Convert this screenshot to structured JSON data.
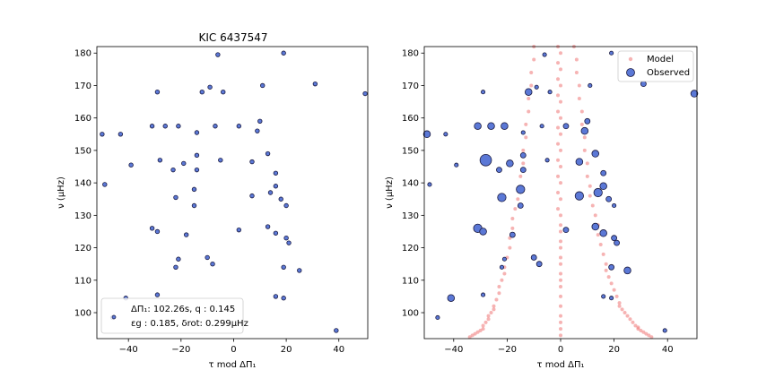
{
  "chart_data": [
    {
      "type": "scatter",
      "title": "KIC 6437547",
      "xlabel": "τ mod ΔΠ₁",
      "ylabel": "ν (μHz)",
      "xlim": [
        -52,
        51
      ],
      "ylim": [
        92,
        182
      ],
      "xticks": [
        -40,
        -20,
        0,
        20,
        40
      ],
      "yticks": [
        100,
        110,
        120,
        130,
        140,
        150,
        160,
        170,
        180
      ],
      "annotation": {
        "line1": "ΔΠ₁: 102.26s, q :  0.145",
        "line2": "εg : 0.185, δrot: 0.299μHz"
      },
      "series": [
        {
          "marker_color": "#5b78d6",
          "edge_color": "#1a1a40",
          "x": [
            -6,
            19,
            31,
            50,
            -29,
            11,
            -9,
            -12,
            -4,
            10,
            -31,
            -26,
            -21,
            -7,
            2,
            9,
            -14,
            -50,
            -43,
            -39,
            -28,
            -19,
            -14,
            7,
            13,
            16,
            -5,
            -14,
            -23,
            -49,
            -15,
            -22,
            -15,
            7,
            14,
            16,
            18,
            20,
            13,
            -31,
            -29,
            -18,
            2,
            16,
            20,
            21,
            -21,
            -10,
            -8,
            19,
            25,
            -22,
            -29,
            16,
            19,
            -41,
            -46,
            39
          ],
          "y": [
            179.5,
            180,
            170.5,
            167.5,
            168,
            170,
            169.5,
            168,
            168,
            159,
            157.5,
            157.5,
            157.5,
            157.5,
            157.5,
            156,
            155.5,
            155,
            155,
            145.5,
            147,
            146,
            148.5,
            146.5,
            149,
            143,
            147,
            144,
            144,
            139.5,
            138,
            135.5,
            133,
            136,
            137,
            139,
            135,
            133,
            126.5,
            126,
            125,
            124,
            125.5,
            124.5,
            123,
            121.5,
            116.5,
            117,
            115,
            114,
            113,
            114,
            105.5,
            105,
            104.5,
            104.5,
            98.5,
            94.5
          ]
        }
      ]
    },
    {
      "type": "scatter",
      "title": "",
      "xlabel": "τ mod ΔΠ₁",
      "ylabel": "ν (μHz)",
      "xlim": [
        -51,
        51
      ],
      "ylim": [
        92,
        182
      ],
      "xticks": [
        -40,
        -20,
        0,
        20,
        40
      ],
      "yticks": [
        100,
        110,
        120,
        130,
        140,
        150,
        160,
        170,
        180
      ],
      "legend": {
        "placement": "top-right",
        "entries": [
          "Model",
          "Observed"
        ]
      },
      "series": [
        {
          "name": "Model",
          "color": "#f08080",
          "branches": [
            {
              "x": [
                -10,
                -10,
                -11,
                -11,
                -12,
                -12,
                -13,
                -13,
                -14,
                -14,
                -15,
                -15,
                -16,
                -17,
                -18,
                -18,
                -19,
                -19,
                -20,
                -21,
                -21,
                -22,
                -23,
                -23,
                -24,
                -25,
                -25,
                -26,
                -27,
                -27,
                -28,
                -29,
                -29,
                -30,
                -31,
                -32,
                -33,
                -34
              ],
              "y": [
                182,
                178,
                174,
                170,
                166,
                162,
                158,
                154,
                150,
                146,
                142,
                138,
                135,
                132,
                129,
                126,
                123,
                120,
                117,
                114,
                112,
                110,
                108,
                106,
                104,
                102,
                101,
                100,
                99,
                98,
                97,
                96,
                95,
                94.5,
                94,
                93.5,
                93,
                92.5
              ]
            },
            {
              "x": [
                -1,
                -1,
                -1,
                -1,
                -1,
                -1,
                -1,
                -1,
                -1,
                -1,
                -1,
                0,
                0,
                0,
                0,
                0,
                0,
                0,
                0,
                0,
                0,
                0,
                0,
                0,
                0,
                0,
                0,
                0,
                0,
                0,
                0,
                0,
                0,
                0,
                0,
                0,
                0
              ],
              "y": [
                182,
                177,
                172,
                167,
                162,
                157,
                152,
                147,
                142,
                137,
                132,
                127,
                122,
                117,
                112,
                108,
                105,
                102,
                99,
                97,
                95,
                93,
                180,
                175,
                170,
                165,
                160,
                155,
                150,
                145,
                140,
                135,
                130,
                125,
                120,
                115,
                110
              ]
            },
            {
              "x": [
                5,
                6,
                6,
                7,
                7,
                8,
                8,
                9,
                9,
                10,
                10,
                11,
                11,
                12,
                13,
                14,
                14,
                15,
                16,
                17,
                17,
                18,
                19,
                20,
                21,
                22,
                22,
                23,
                24,
                25,
                26,
                27,
                28,
                29,
                29,
                30,
                31,
                32,
                33,
                34
              ],
              "y": [
                182,
                178,
                174,
                170,
                166,
                162,
                158,
                154,
                150,
                146,
                142,
                139,
                136,
                133,
                130,
                127,
                124,
                121,
                118,
                115,
                113,
                111,
                109,
                107,
                105,
                103,
                102,
                101,
                100,
                99,
                98,
                97,
                96,
                95.5,
                95,
                94.5,
                94,
                93.5,
                93,
                92.5
              ]
            }
          ]
        },
        {
          "name": "Observed",
          "marker_color": "#5b78d6",
          "edge_color": "#1a1a40",
          "x": [
            -6,
            19,
            31,
            50,
            -29,
            11,
            -9,
            -12,
            -4,
            10,
            -31,
            -26,
            -21,
            -7,
            2,
            9,
            -14,
            -50,
            -43,
            -39,
            -28,
            -19,
            -14,
            7,
            13,
            16,
            -5,
            -14,
            -23,
            -49,
            -15,
            -22,
            -15,
            7,
            14,
            16,
            18,
            20,
            13,
            -31,
            -29,
            -18,
            2,
            16,
            20,
            21,
            -21,
            -10,
            -8,
            19,
            25,
            -22,
            -29,
            16,
            19,
            -41,
            -46,
            39
          ],
          "y": [
            179.5,
            180,
            170.5,
            167.5,
            168,
            170,
            169.5,
            168,
            168,
            159,
            157.5,
            157.5,
            157.5,
            157.5,
            157.5,
            156,
            155.5,
            155,
            155,
            145.5,
            147,
            146,
            148.5,
            146.5,
            149,
            143,
            147,
            144,
            144,
            139.5,
            138,
            135.5,
            133,
            136,
            137,
            139,
            135,
            133,
            126.5,
            126,
            125,
            124,
            125.5,
            124.5,
            123,
            121.5,
            116.5,
            117,
            115,
            114,
            113,
            114,
            105.5,
            105,
            104.5,
            104.5,
            98.5,
            94.5
          ],
          "size": [
            1,
            1,
            2,
            3,
            1,
            1,
            1,
            3,
            1,
            2,
            3,
            3,
            3,
            1,
            2,
            3,
            1,
            3,
            1,
            1,
            6,
            3,
            2,
            3,
            3,
            2,
            1,
            2,
            2,
            1,
            4,
            4,
            2,
            4,
            4,
            3,
            2,
            1,
            3,
            4,
            3,
            2,
            2,
            3,
            2,
            2,
            1,
            2,
            2,
            2,
            3,
            1,
            1,
            1,
            1,
            3,
            1,
            1
          ]
        }
      ]
    }
  ]
}
